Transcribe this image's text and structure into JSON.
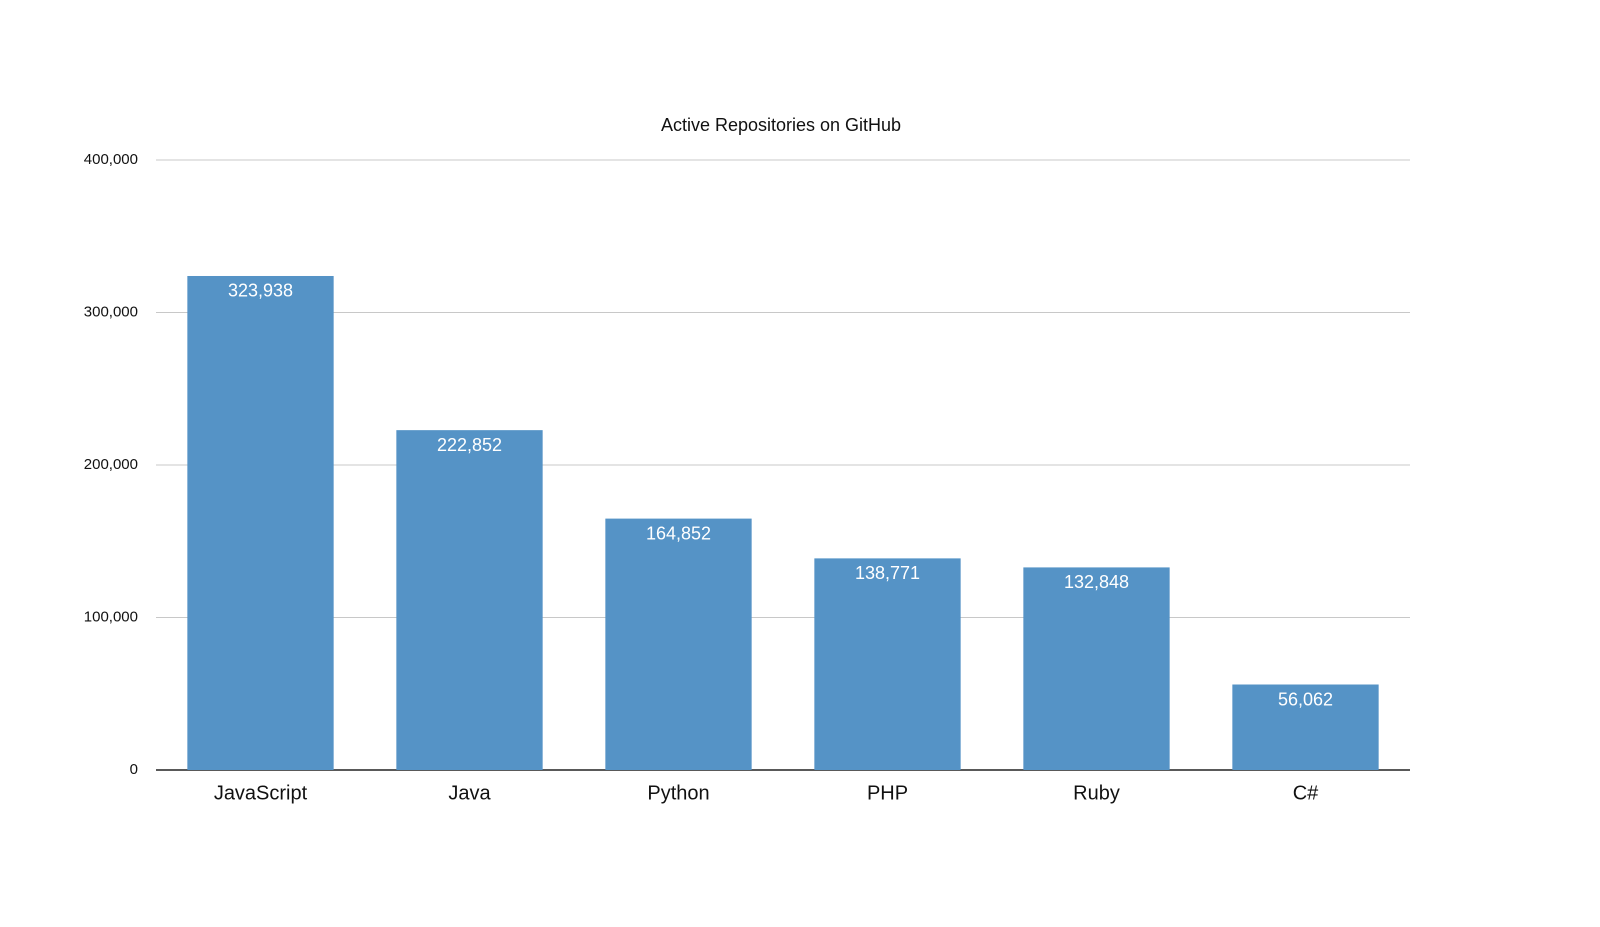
{
  "chart_data": {
    "type": "bar",
    "title": "Active Repositories on GitHub",
    "categories": [
      "JavaScript",
      "Java",
      "Python",
      "PHP",
      "Ruby",
      "C#"
    ],
    "values": [
      323938,
      222852,
      164852,
      138771,
      132848,
      56062
    ],
    "value_labels": [
      "323,938",
      "222,852",
      "164,852",
      "138,771",
      "132,848",
      "56,062"
    ],
    "color": "#5593c6",
    "ylim": [
      0,
      400000
    ],
    "yticks": [
      0,
      {
        "value": 100000,
        "label": "100,000"
      },
      {
        "value": 200000,
        "label": "200,000"
      },
      {
        "value": 300000,
        "label": "300,000"
      },
      {
        "value": 400000,
        "label": "400,000"
      }
    ],
    "grid": true
  }
}
